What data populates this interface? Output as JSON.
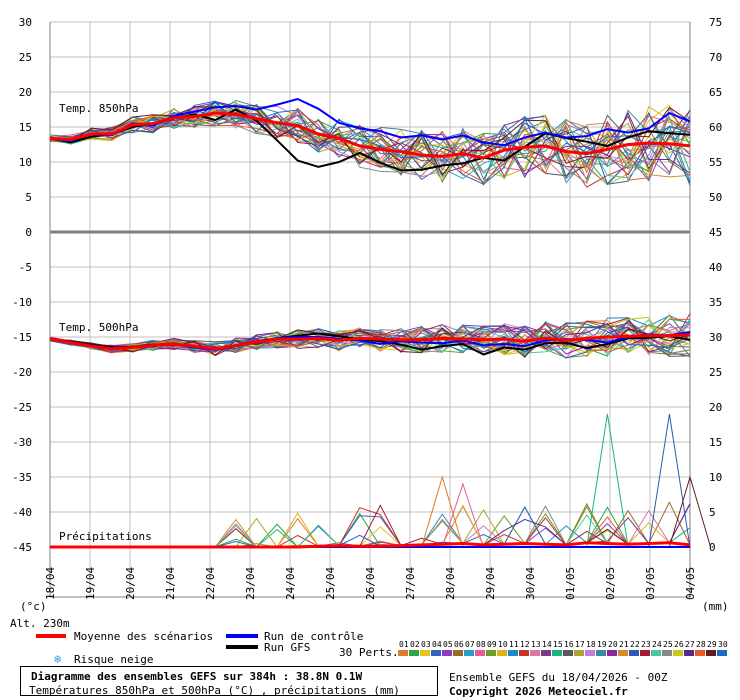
{
  "chart_data": {
    "type": "line",
    "dates": [
      "19/04",
      "20/04",
      "21/04",
      "22/04",
      "23/04",
      "24/04",
      "25/04",
      "26/04",
      "27/04",
      "28/04",
      "29/04",
      "30/04",
      "01/05",
      "02/05",
      "03/05",
      "04/05"
    ],
    "first_date": "18/04",
    "left_axis": {
      "ticks": [
        30,
        25,
        20,
        15,
        10,
        5,
        0,
        -5,
        -10,
        -15,
        -20,
        -25,
        -30,
        -35,
        -40,
        -45
      ],
      "unit": "(°c)"
    },
    "right_axis": {
      "ticks": [
        75,
        70,
        65,
        60,
        55,
        50,
        45,
        40,
        35,
        30,
        25,
        20,
        15,
        10,
        5,
        0
      ],
      "unit": "(mm)"
    },
    "panels": [
      {
        "label": "Temp. 850hPa",
        "mean": [
          13.4,
          13.2,
          14.0,
          14.0,
          15.3,
          15.5,
          16.3,
          16.5,
          17.0,
          16.8,
          16.2,
          15.6,
          15.2,
          14.0,
          13.4,
          12.3,
          11.8,
          11.5,
          11.0,
          10.8,
          11.2,
          10.6,
          11.7,
          12.1,
          12.3,
          11.5,
          11.2,
          11.8,
          12.5,
          12.7,
          12.6,
          12.3
        ],
        "control": [
          13.4,
          13.0,
          14.0,
          13.8,
          15.5,
          15.2,
          16.6,
          17.2,
          17.8,
          18.0,
          17.5,
          18.2,
          19.0,
          17.6,
          15.6,
          14.8,
          14.4,
          13.5,
          13.8,
          13.2,
          13.8,
          12.8,
          12.4,
          13.5,
          14.2,
          13.5,
          13.7,
          14.7,
          14.2,
          14.8,
          17.0,
          15.8
        ],
        "gfs": [
          13.4,
          12.8,
          13.6,
          14.0,
          15.0,
          15.5,
          16.2,
          16.8,
          16.0,
          17.5,
          15.9,
          13.1,
          10.2,
          9.3,
          10.0,
          11.3,
          9.9,
          8.8,
          8.9,
          9.5,
          9.8,
          10.6,
          10.2,
          12.2,
          14.1,
          13.4,
          12.9,
          12.3,
          13.5,
          14.4,
          14.1,
          13.9
        ]
      },
      {
        "label": "Temp. 500hPa",
        "mean": [
          -15.3,
          -15.8,
          -16.3,
          -16.7,
          -16.5,
          -16.2,
          -16.0,
          -16.3,
          -16.7,
          -16.2,
          -15.7,
          -15.3,
          -15.3,
          -15.2,
          -15.5,
          -15.2,
          -15.3,
          -15.4,
          -15.4,
          -15.2,
          -15.3,
          -15.4,
          -15.3,
          -15.6,
          -15.2,
          -15.5,
          -15.2,
          -15.0,
          -14.9,
          -14.8,
          -14.8,
          -14.7
        ],
        "control": [
          -15.3,
          -15.8,
          -16.2,
          -16.6,
          -16.4,
          -16.3,
          -16.0,
          -16.5,
          -16.8,
          -16.3,
          -15.8,
          -15.2,
          -15.0,
          -15.0,
          -15.3,
          -15.5,
          -16.0,
          -15.6,
          -15.8,
          -15.9,
          -15.5,
          -16.2,
          -16.0,
          -16.3,
          -15.5,
          -15.3,
          -15.4,
          -15.8,
          -15.0,
          -14.6,
          -14.8,
          -14.3
        ],
        "gfs": [
          -15.3,
          -15.7,
          -16.1,
          -16.5,
          -16.4,
          -16.1,
          -15.9,
          -16.4,
          -16.8,
          -16.2,
          -15.6,
          -15.2,
          -14.8,
          -14.5,
          -14.9,
          -15.3,
          -15.6,
          -16.1,
          -16.8,
          -16.3,
          -16.0,
          -17.5,
          -16.5,
          -16.8,
          -15.9,
          -15.8,
          -16.6,
          -16.0,
          -15.2,
          -15.1,
          -14.9,
          -15.4
        ]
      },
      {
        "label": "Précipitations",
        "mean": [
          0,
          0,
          0,
          0,
          0,
          0,
          0,
          0,
          0,
          0,
          0,
          0,
          0,
          0.1,
          0.2,
          0.1,
          0.1,
          0.2,
          0.3,
          0.4,
          0.5,
          0.3,
          0.4,
          0.5,
          0.4,
          0.3,
          0.6,
          0.5,
          0.4,
          0.5,
          0.6,
          0.3
        ],
        "control": [
          0,
          0,
          0,
          0,
          0,
          0,
          0,
          0,
          0,
          0,
          0,
          0,
          0,
          0,
          0,
          0,
          0,
          0,
          0,
          0,
          0,
          0,
          0,
          0,
          0,
          0,
          0,
          0,
          0,
          0,
          0,
          0
        ],
        "gfs": [
          0,
          0,
          0,
          0,
          0,
          0,
          0,
          0,
          0,
          0,
          0,
          0,
          0,
          0,
          0,
          0,
          0,
          0,
          0,
          0,
          0,
          0,
          0,
          0,
          0,
          0,
          0,
          0,
          0,
          0,
          0,
          0
        ]
      }
    ],
    "grid": true
  },
  "colors": {
    "mean": "#ff0000",
    "control": "#0000ff",
    "gfs": "#000000",
    "perturbations": [
      "#e07b28",
      "#2aa84a",
      "#e8c21a",
      "#3264c8",
      "#8c3cc0",
      "#9a6a2a",
      "#2aa0c8",
      "#e85a9a",
      "#6aa02a",
      "#d8b41a",
      "#1a8ac8",
      "#c83228",
      "#d87aa0",
      "#7a3a8a",
      "#1ab478",
      "#5a5a5a",
      "#a8a82a",
      "#c87ae0",
      "#3a8aa0",
      "#8a2aa0",
      "#d88a28",
      "#2a5ab4",
      "#a81a3a",
      "#48c8a0",
      "#888888",
      "#c8c81a",
      "#5a2a8a",
      "#e85a28",
      "#6a1a1a",
      "#1a6ac8"
    ]
  },
  "alt_label": "Alt. 230m",
  "legend": {
    "mean": "Moyenne des scénarios",
    "control": "Run de contrôle",
    "gfs": "Run GFS",
    "snow": "Risque neige",
    "perts_label": "30 Perts.",
    "perts_numbers": [
      "01",
      "02",
      "03",
      "04",
      "05",
      "06",
      "07",
      "08",
      "09",
      "10",
      "11",
      "12",
      "13",
      "14",
      "15",
      "16",
      "17",
      "18",
      "19",
      "20",
      "21",
      "22",
      "23",
      "24",
      "25",
      "26",
      "27",
      "28",
      "29",
      "30"
    ]
  },
  "footer": {
    "title": "Diagramme des ensembles GEFS sur 384h : 38.8N 0.1W",
    "subtitle": "Températures 850hPa et 500hPa (°C) , précipitations (mm)",
    "run_info": "Ensemble GEFS du 18/04/2026 - 00Z",
    "copyright": "Copyright 2026 Meteociel.fr"
  }
}
